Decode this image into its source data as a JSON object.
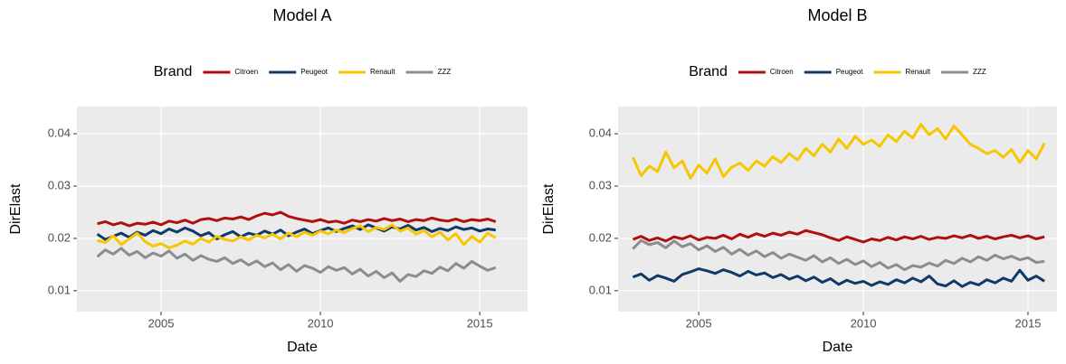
{
  "chart_data": [
    {
      "type": "line",
      "title": "Model A",
      "xlabel": "Date",
      "ylabel": "DirElast",
      "legend_title": "Brand",
      "legend": "top",
      "grid": true,
      "x": [
        2003,
        2003.25,
        2003.5,
        2003.75,
        2004,
        2004.25,
        2004.5,
        2004.75,
        2005,
        2005.25,
        2005.5,
        2005.75,
        2006,
        2006.25,
        2006.5,
        2006.75,
        2007,
        2007.25,
        2007.5,
        2007.75,
        2008,
        2008.25,
        2008.5,
        2008.75,
        2009,
        2009.25,
        2009.5,
        2009.75,
        2010,
        2010.25,
        2010.5,
        2010.75,
        2011,
        2011.25,
        2011.5,
        2011.75,
        2012,
        2012.25,
        2012.5,
        2012.75,
        2013,
        2013.25,
        2013.5,
        2013.75,
        2014,
        2014.25,
        2014.5,
        2014.75,
        2015,
        2015.25,
        2015.5
      ],
      "xlim": [
        2002.36,
        2016.5
      ],
      "xticks": [
        2005,
        2010,
        2015
      ],
      "ylim": [
        0.006,
        0.0452
      ],
      "yticks": [
        0.01,
        0.02,
        0.03,
        0.04
      ],
      "series": [
        {
          "name": "Citroen",
          "color": "#b20f0f",
          "values": [
            0.0228,
            0.0232,
            0.0226,
            0.023,
            0.0224,
            0.0229,
            0.0227,
            0.0231,
            0.0226,
            0.0233,
            0.023,
            0.0235,
            0.0229,
            0.0236,
            0.0238,
            0.0234,
            0.0239,
            0.0237,
            0.0241,
            0.0236,
            0.0243,
            0.0248,
            0.0245,
            0.025,
            0.0242,
            0.0238,
            0.0235,
            0.0232,
            0.0236,
            0.0231,
            0.0233,
            0.0229,
            0.0235,
            0.0232,
            0.0236,
            0.0233,
            0.0238,
            0.0234,
            0.0237,
            0.0232,
            0.0236,
            0.0234,
            0.0239,
            0.0235,
            0.0233,
            0.0237,
            0.0232,
            0.0236,
            0.0234,
            0.0237,
            0.0232
          ]
        },
        {
          "name": "Peugeot",
          "color": "#0f3a68",
          "values": [
            0.0208,
            0.0198,
            0.0204,
            0.021,
            0.0202,
            0.0212,
            0.0206,
            0.0215,
            0.0209,
            0.0218,
            0.0212,
            0.022,
            0.0214,
            0.0205,
            0.0211,
            0.0199,
            0.0207,
            0.0213,
            0.0203,
            0.021,
            0.0206,
            0.0214,
            0.0208,
            0.0216,
            0.0205,
            0.0212,
            0.0218,
            0.0209,
            0.0215,
            0.022,
            0.0213,
            0.0219,
            0.0224,
            0.0217,
            0.0226,
            0.022,
            0.0214,
            0.0222,
            0.0218,
            0.0225,
            0.0216,
            0.0221,
            0.0213,
            0.0219,
            0.0215,
            0.0222,
            0.0217,
            0.022,
            0.0214,
            0.0218,
            0.0216
          ]
        },
        {
          "name": "Renault",
          "color": "#f7c600",
          "values": [
            0.0196,
            0.0192,
            0.0205,
            0.0188,
            0.0199,
            0.021,
            0.0194,
            0.0185,
            0.019,
            0.0182,
            0.0187,
            0.0195,
            0.0189,
            0.02,
            0.0193,
            0.0204,
            0.0198,
            0.0195,
            0.0203,
            0.0197,
            0.0206,
            0.0201,
            0.0208,
            0.0199,
            0.021,
            0.0203,
            0.0212,
            0.0206,
            0.0214,
            0.0209,
            0.0216,
            0.0211,
            0.0219,
            0.0224,
            0.0213,
            0.0221,
            0.0217,
            0.0226,
            0.0214,
            0.022,
            0.0208,
            0.0215,
            0.0203,
            0.0212,
            0.0197,
            0.0209,
            0.0188,
            0.0204,
            0.0193,
            0.021,
            0.0201
          ]
        },
        {
          "name": "ZZZ",
          "color": "#8c8c8c",
          "values": [
            0.0165,
            0.0178,
            0.017,
            0.0181,
            0.0168,
            0.0175,
            0.0163,
            0.0172,
            0.0166,
            0.0176,
            0.0162,
            0.017,
            0.0158,
            0.0167,
            0.016,
            0.0156,
            0.0163,
            0.0152,
            0.0159,
            0.0149,
            0.0157,
            0.0146,
            0.0153,
            0.014,
            0.015,
            0.0137,
            0.0148,
            0.0143,
            0.0135,
            0.0146,
            0.0139,
            0.0144,
            0.0132,
            0.0141,
            0.0128,
            0.0137,
            0.0125,
            0.0134,
            0.0118,
            0.0131,
            0.0127,
            0.0138,
            0.0133,
            0.0145,
            0.0138,
            0.0152,
            0.0143,
            0.0156,
            0.0147,
            0.0139,
            0.0144
          ]
        }
      ]
    },
    {
      "type": "line",
      "title": "Model B",
      "xlabel": "Date",
      "ylabel": "DirElast",
      "legend_title": "Brand",
      "legend": "top",
      "grid": true,
      "x": [
        2003,
        2003.25,
        2003.5,
        2003.75,
        2004,
        2004.25,
        2004.5,
        2004.75,
        2005,
        2005.25,
        2005.5,
        2005.75,
        2006,
        2006.25,
        2006.5,
        2006.75,
        2007,
        2007.25,
        2007.5,
        2007.75,
        2008,
        2008.25,
        2008.5,
        2008.75,
        2009,
        2009.25,
        2009.5,
        2009.75,
        2010,
        2010.25,
        2010.5,
        2010.75,
        2011,
        2011.25,
        2011.5,
        2011.75,
        2012,
        2012.25,
        2012.5,
        2012.75,
        2013,
        2013.25,
        2013.5,
        2013.75,
        2014,
        2014.25,
        2014.5,
        2014.75,
        2015,
        2015.25,
        2015.5
      ],
      "xlim": [
        2002.55,
        2015.88
      ],
      "xticks": [
        2005,
        2010,
        2015
      ],
      "ylim": [
        0.006,
        0.0452
      ],
      "yticks": [
        0.01,
        0.02,
        0.03,
        0.04
      ],
      "series": [
        {
          "name": "Citroen",
          "color": "#b20f0f",
          "values": [
            0.0198,
            0.0204,
            0.0196,
            0.0201,
            0.0195,
            0.0203,
            0.0199,
            0.0205,
            0.0197,
            0.0202,
            0.02,
            0.0206,
            0.0199,
            0.0208,
            0.0202,
            0.0209,
            0.0204,
            0.021,
            0.0206,
            0.0212,
            0.0208,
            0.0215,
            0.0211,
            0.0207,
            0.0201,
            0.0196,
            0.0203,
            0.0198,
            0.0193,
            0.0199,
            0.0196,
            0.0202,
            0.0197,
            0.0203,
            0.0199,
            0.0204,
            0.0198,
            0.0202,
            0.02,
            0.0205,
            0.0201,
            0.0206,
            0.02,
            0.0204,
            0.0199,
            0.0203,
            0.0206,
            0.0201,
            0.0205,
            0.0199,
            0.0203
          ]
        },
        {
          "name": "Peugeot",
          "color": "#0f3a68",
          "values": [
            0.0126,
            0.0132,
            0.012,
            0.0129,
            0.0124,
            0.0118,
            0.0131,
            0.0136,
            0.0142,
            0.0138,
            0.0133,
            0.014,
            0.0135,
            0.0128,
            0.0137,
            0.013,
            0.0134,
            0.0125,
            0.0131,
            0.0122,
            0.0128,
            0.0119,
            0.0126,
            0.0116,
            0.0123,
            0.0112,
            0.012,
            0.0114,
            0.0118,
            0.011,
            0.0117,
            0.0112,
            0.0121,
            0.0115,
            0.0124,
            0.0117,
            0.0128,
            0.0113,
            0.0109,
            0.0119,
            0.0108,
            0.0116,
            0.0111,
            0.0121,
            0.0115,
            0.0124,
            0.0118,
            0.0139,
            0.012,
            0.0128,
            0.0118
          ]
        },
        {
          "name": "Renault",
          "color": "#f7c600",
          "values": [
            0.0355,
            0.032,
            0.0338,
            0.0328,
            0.0365,
            0.0335,
            0.0348,
            0.0315,
            0.034,
            0.0325,
            0.0352,
            0.0318,
            0.0336,
            0.0344,
            0.033,
            0.0348,
            0.0338,
            0.0356,
            0.0345,
            0.0362,
            0.035,
            0.0372,
            0.0358,
            0.038,
            0.0365,
            0.039,
            0.0372,
            0.0395,
            0.038,
            0.0388,
            0.0376,
            0.0398,
            0.0385,
            0.0405,
            0.0392,
            0.0418,
            0.0398,
            0.041,
            0.039,
            0.0415,
            0.0398,
            0.038,
            0.0372,
            0.0362,
            0.0368,
            0.0355,
            0.037,
            0.0345,
            0.0368,
            0.0352,
            0.0382
          ]
        },
        {
          "name": "ZZZ",
          "color": "#8c8c8c",
          "values": [
            0.018,
            0.0196,
            0.0188,
            0.0192,
            0.0182,
            0.0195,
            0.0184,
            0.019,
            0.0178,
            0.0186,
            0.0175,
            0.0183,
            0.017,
            0.0179,
            0.0168,
            0.0176,
            0.0165,
            0.0173,
            0.0162,
            0.017,
            0.0164,
            0.0158,
            0.0167,
            0.0155,
            0.0163,
            0.0152,
            0.016,
            0.015,
            0.0157,
            0.0146,
            0.0154,
            0.0143,
            0.015,
            0.014,
            0.0148,
            0.0145,
            0.0153,
            0.0147,
            0.0158,
            0.0152,
            0.0162,
            0.0155,
            0.0165,
            0.0158,
            0.0168,
            0.0161,
            0.0166,
            0.0159,
            0.0163,
            0.0154,
            0.0156
          ]
        }
      ]
    }
  ]
}
